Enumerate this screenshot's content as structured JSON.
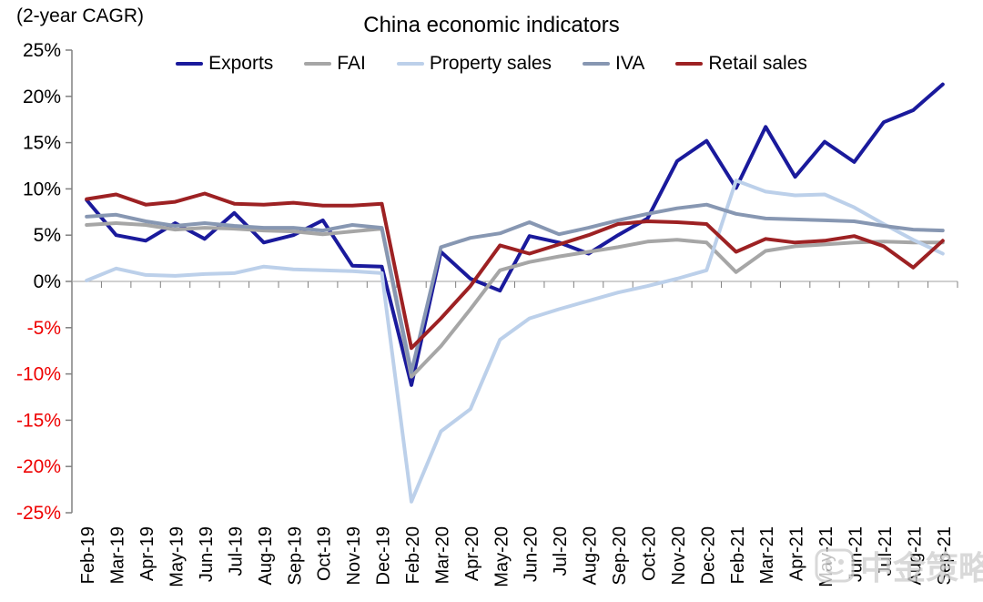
{
  "header": {
    "units_label": "(2-year CAGR)"
  },
  "watermark": {
    "text": "中金策略"
  },
  "chart_data": {
    "type": "line",
    "title": "China economic indicators",
    "unit": "%",
    "legend_position": "top",
    "grid": "zero-line-only",
    "y_axis": {
      "min": -25,
      "max": 25,
      "step": 5,
      "tick_suffix": "%",
      "positive_color": "#000000",
      "negative_color": "#ee0000",
      "axis_color": "#808080",
      "zero_line_color": "#b3b3b3"
    },
    "categories": [
      "Feb-19",
      "Mar-19",
      "Apr-19",
      "May-19",
      "Jun-19",
      "Jul-19",
      "Aug-19",
      "Sep-19",
      "Oct-19",
      "Nov-19",
      "Dec-19",
      "Feb-20",
      "Mar-20",
      "Apr-20",
      "May-20",
      "Jun-20",
      "Jul-20",
      "Aug-20",
      "Sep-20",
      "Oct-20",
      "Nov-20",
      "Dec-20",
      "Feb-21",
      "Mar-21",
      "Apr-21",
      "May-21",
      "Jun-21",
      "Jul-21",
      "Aug-21",
      "Sep-21"
    ],
    "series": [
      {
        "name": "Exports",
        "color": "#1a1a9c",
        "values": [
          8.8,
          5.0,
          4.4,
          6.3,
          4.6,
          7.4,
          4.2,
          5.0,
          6.6,
          1.7,
          1.6,
          -11.2,
          3.2,
          0.3,
          -1.0,
          4.9,
          4.2,
          3.0,
          5.0,
          6.8,
          13.0,
          15.2,
          10.1,
          16.7,
          11.3,
          15.1,
          12.9,
          17.2,
          18.5,
          21.3
        ]
      },
      {
        "name": "FAI",
        "color": "#a6a6a6",
        "values": [
          6.1,
          6.3,
          6.1,
          5.6,
          5.8,
          5.7,
          5.5,
          5.4,
          5.1,
          5.4,
          5.7,
          -10.3,
          -7.0,
          -3.0,
          1.2,
          2.1,
          2.7,
          3.2,
          3.7,
          4.3,
          4.5,
          4.2,
          1.0,
          3.3,
          3.8,
          4.0,
          4.2,
          4.3,
          4.2,
          4.2
        ]
      },
      {
        "name": "Property sales",
        "color": "#bcd0ea",
        "values": [
          0.1,
          1.4,
          0.7,
          0.6,
          0.8,
          0.9,
          1.6,
          1.3,
          1.2,
          1.1,
          0.9,
          -23.8,
          -16.2,
          -13.8,
          -6.3,
          -4.0,
          -3.0,
          -2.1,
          -1.2,
          -0.5,
          0.3,
          1.2,
          10.9,
          9.7,
          9.3,
          9.4,
          8.0,
          6.2,
          4.5,
          3.0
        ]
      },
      {
        "name": "IVA",
        "color": "#8797b2",
        "values": [
          7.0,
          7.2,
          6.5,
          6.0,
          6.3,
          6.0,
          5.8,
          5.8,
          5.5,
          6.1,
          5.8,
          -9.8,
          3.7,
          4.7,
          5.2,
          6.4,
          5.1,
          5.8,
          6.6,
          7.3,
          7.9,
          8.3,
          7.3,
          6.8,
          6.7,
          6.6,
          6.5,
          6.0,
          5.6,
          5.5
        ]
      },
      {
        "name": "Retail sales",
        "color": "#9d2123",
        "values": [
          8.9,
          9.4,
          8.3,
          8.6,
          9.5,
          8.4,
          8.3,
          8.5,
          8.2,
          8.2,
          8.4,
          -7.2,
          -4.0,
          -0.5,
          3.9,
          3.0,
          4.0,
          5.0,
          6.2,
          6.5,
          6.4,
          6.2,
          3.2,
          4.6,
          4.2,
          4.4,
          4.9,
          3.8,
          1.5,
          4.4
        ]
      }
    ]
  }
}
